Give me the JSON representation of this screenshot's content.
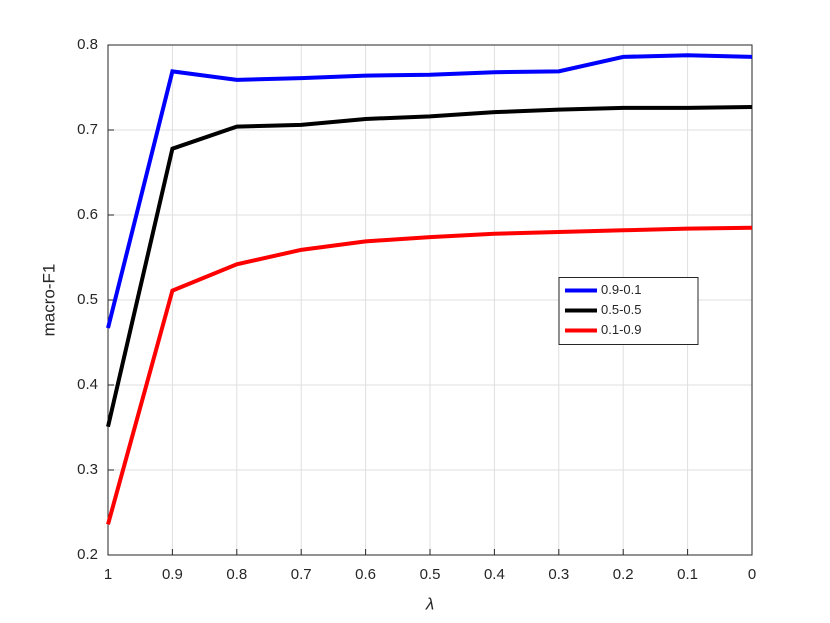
{
  "chart_data": {
    "type": "line",
    "x_label": "λ",
    "y_label": "macro-F1",
    "x": [
      1,
      0.9,
      0.8,
      0.7,
      0.6,
      0.5,
      0.4,
      0.3,
      0.2,
      0.1,
      0
    ],
    "series": [
      {
        "name": "0.9-0.1",
        "color": "#0000ff",
        "values": [
          0.467,
          0.769,
          0.759,
          0.761,
          0.764,
          0.765,
          0.768,
          0.769,
          0.786,
          0.788,
          0.786
        ]
      },
      {
        "name": "0.5-0.5",
        "color": "#000000",
        "values": [
          0.351,
          0.678,
          0.704,
          0.706,
          0.713,
          0.716,
          0.721,
          0.724,
          0.726,
          0.726,
          0.727
        ]
      },
      {
        "name": "0.1-0.9",
        "color": "#ff0000",
        "values": [
          0.236,
          0.511,
          0.542,
          0.559,
          0.569,
          0.574,
          0.578,
          0.58,
          0.582,
          0.584,
          0.585
        ]
      }
    ],
    "xlim": [
      1,
      0
    ],
    "xticks": [
      1,
      0.9,
      0.8,
      0.7,
      0.6,
      0.5,
      0.4,
      0.3,
      0.2,
      0.1,
      0
    ],
    "ylim": [
      0.2,
      0.8
    ],
    "yticks": [
      0.2,
      0.3,
      0.4,
      0.5,
      0.6,
      0.7,
      0.8
    ],
    "grid": true,
    "legend": "east"
  }
}
